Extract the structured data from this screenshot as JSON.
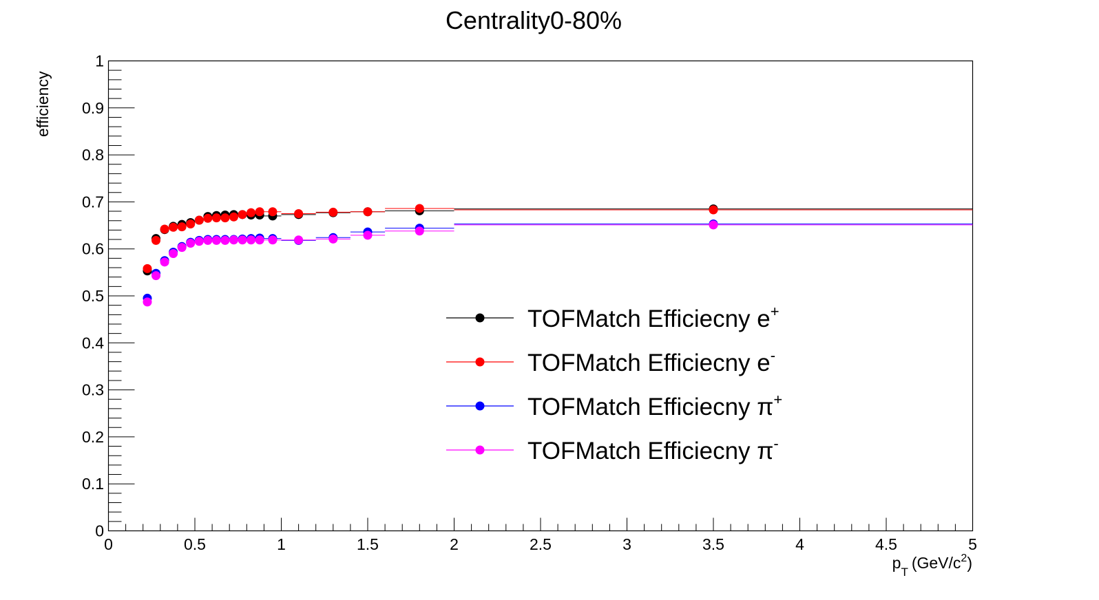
{
  "chart_data": {
    "type": "scatter",
    "title": "Centrality0-80%",
    "ylabel": "efficiency",
    "xlabel_parts": {
      "p": "p",
      "T": "T",
      "units": "(GeV/c",
      "sup": "2",
      "close": ")"
    },
    "xlim": [
      0,
      5
    ],
    "ylim": [
      0,
      1
    ],
    "x_ticks": [
      "0",
      "0.5",
      "1",
      "1.5",
      "2",
      "2.5",
      "3",
      "3.5",
      "4",
      "4.5",
      "5"
    ],
    "y_ticks": [
      "0",
      "0.1",
      "0.2",
      "0.3",
      "0.4",
      "0.5",
      "0.6",
      "0.7",
      "0.8",
      "0.9",
      "1"
    ],
    "grid": false,
    "legend_position": "center-right",
    "series": [
      {
        "name": "TOFMatch Efficiecny e+",
        "label_base": "TOFMatch Efficiecny e",
        "label_sup": "+",
        "color": "#000000",
        "points": [
          {
            "x": 0.225,
            "xerr": 0.025,
            "y": 0.553
          },
          {
            "x": 0.275,
            "xerr": 0.025,
            "y": 0.622
          },
          {
            "x": 0.325,
            "xerr": 0.025,
            "y": 0.641
          },
          {
            "x": 0.375,
            "xerr": 0.025,
            "y": 0.648
          },
          {
            "x": 0.425,
            "xerr": 0.025,
            "y": 0.652
          },
          {
            "x": 0.475,
            "xerr": 0.025,
            "y": 0.656
          },
          {
            "x": 0.525,
            "xerr": 0.025,
            "y": 0.661
          },
          {
            "x": 0.575,
            "xerr": 0.025,
            "y": 0.669
          },
          {
            "x": 0.625,
            "xerr": 0.025,
            "y": 0.671
          },
          {
            "x": 0.675,
            "xerr": 0.025,
            "y": 0.672
          },
          {
            "x": 0.725,
            "xerr": 0.025,
            "y": 0.673
          },
          {
            "x": 0.775,
            "xerr": 0.025,
            "y": 0.673
          },
          {
            "x": 0.825,
            "xerr": 0.025,
            "y": 0.672
          },
          {
            "x": 0.875,
            "xerr": 0.025,
            "y": 0.672
          },
          {
            "x": 0.95,
            "xerr": 0.05,
            "y": 0.67
          },
          {
            "x": 1.1,
            "xerr": 0.1,
            "y": 0.673
          },
          {
            "x": 1.3,
            "xerr": 0.1,
            "y": 0.677
          },
          {
            "x": 1.5,
            "xerr": 0.1,
            "y": 0.679
          },
          {
            "x": 1.8,
            "xerr": 0.2,
            "y": 0.681
          },
          {
            "x": 3.5,
            "xerr": 1.5,
            "y": 0.685
          }
        ]
      },
      {
        "name": "TOFMatch Efficiecny e-",
        "label_base": "TOFMatch Efficiecny e",
        "label_sup": "-",
        "color": "#ff0000",
        "points": [
          {
            "x": 0.225,
            "xerr": 0.025,
            "y": 0.558
          },
          {
            "x": 0.275,
            "xerr": 0.025,
            "y": 0.618
          },
          {
            "x": 0.325,
            "xerr": 0.025,
            "y": 0.642
          },
          {
            "x": 0.375,
            "xerr": 0.025,
            "y": 0.646
          },
          {
            "x": 0.425,
            "xerr": 0.025,
            "y": 0.647
          },
          {
            "x": 0.475,
            "xerr": 0.025,
            "y": 0.653
          },
          {
            "x": 0.525,
            "xerr": 0.025,
            "y": 0.661
          },
          {
            "x": 0.575,
            "xerr": 0.025,
            "y": 0.665
          },
          {
            "x": 0.625,
            "xerr": 0.025,
            "y": 0.666
          },
          {
            "x": 0.675,
            "xerr": 0.025,
            "y": 0.666
          },
          {
            "x": 0.725,
            "xerr": 0.025,
            "y": 0.668
          },
          {
            "x": 0.775,
            "xerr": 0.025,
            "y": 0.673
          },
          {
            "x": 0.825,
            "xerr": 0.025,
            "y": 0.677
          },
          {
            "x": 0.875,
            "xerr": 0.025,
            "y": 0.679
          },
          {
            "x": 0.95,
            "xerr": 0.05,
            "y": 0.679
          },
          {
            "x": 1.1,
            "xerr": 0.1,
            "y": 0.675
          },
          {
            "x": 1.3,
            "xerr": 0.1,
            "y": 0.678
          },
          {
            "x": 1.5,
            "xerr": 0.1,
            "y": 0.679
          },
          {
            "x": 1.8,
            "xerr": 0.2,
            "y": 0.686
          },
          {
            "x": 3.5,
            "xerr": 1.5,
            "y": 0.683
          }
        ]
      },
      {
        "name": "TOFMatch Efficiecny π+",
        "label_base": "TOFMatch Efficiecny π",
        "label_sup": "+",
        "color": "#0000ff",
        "points": [
          {
            "x": 0.225,
            "xerr": 0.025,
            "y": 0.495
          },
          {
            "x": 0.275,
            "xerr": 0.025,
            "y": 0.548
          },
          {
            "x": 0.325,
            "xerr": 0.025,
            "y": 0.575
          },
          {
            "x": 0.375,
            "xerr": 0.025,
            "y": 0.593
          },
          {
            "x": 0.425,
            "xerr": 0.025,
            "y": 0.605
          },
          {
            "x": 0.475,
            "xerr": 0.025,
            "y": 0.614
          },
          {
            "x": 0.525,
            "xerr": 0.025,
            "y": 0.618
          },
          {
            "x": 0.575,
            "xerr": 0.025,
            "y": 0.62
          },
          {
            "x": 0.625,
            "xerr": 0.025,
            "y": 0.62
          },
          {
            "x": 0.675,
            "xerr": 0.025,
            "y": 0.62
          },
          {
            "x": 0.725,
            "xerr": 0.025,
            "y": 0.62
          },
          {
            "x": 0.775,
            "xerr": 0.025,
            "y": 0.621
          },
          {
            "x": 0.825,
            "xerr": 0.025,
            "y": 0.622
          },
          {
            "x": 0.875,
            "xerr": 0.025,
            "y": 0.623
          },
          {
            "x": 0.95,
            "xerr": 0.05,
            "y": 0.622
          },
          {
            "x": 1.1,
            "xerr": 0.1,
            "y": 0.618
          },
          {
            "x": 1.3,
            "xerr": 0.1,
            "y": 0.624
          },
          {
            "x": 1.5,
            "xerr": 0.1,
            "y": 0.636
          },
          {
            "x": 1.8,
            "xerr": 0.2,
            "y": 0.644
          },
          {
            "x": 3.5,
            "xerr": 1.5,
            "y": 0.653
          }
        ]
      },
      {
        "name": "TOFMatch Efficiecny π-",
        "label_base": "TOFMatch Efficiecny π",
        "label_sup": "-",
        "color": "#ff00ff",
        "points": [
          {
            "x": 0.225,
            "xerr": 0.025,
            "y": 0.487
          },
          {
            "x": 0.275,
            "xerr": 0.025,
            "y": 0.543
          },
          {
            "x": 0.325,
            "xerr": 0.025,
            "y": 0.572
          },
          {
            "x": 0.375,
            "xerr": 0.025,
            "y": 0.59
          },
          {
            "x": 0.425,
            "xerr": 0.025,
            "y": 0.603
          },
          {
            "x": 0.475,
            "xerr": 0.025,
            "y": 0.612
          },
          {
            "x": 0.525,
            "xerr": 0.025,
            "y": 0.616
          },
          {
            "x": 0.575,
            "xerr": 0.025,
            "y": 0.618
          },
          {
            "x": 0.625,
            "xerr": 0.025,
            "y": 0.618
          },
          {
            "x": 0.675,
            "xerr": 0.025,
            "y": 0.618
          },
          {
            "x": 0.725,
            "xerr": 0.025,
            "y": 0.619
          },
          {
            "x": 0.775,
            "xerr": 0.025,
            "y": 0.619
          },
          {
            "x": 0.825,
            "xerr": 0.025,
            "y": 0.619
          },
          {
            "x": 0.875,
            "xerr": 0.025,
            "y": 0.619
          },
          {
            "x": 0.95,
            "xerr": 0.05,
            "y": 0.619
          },
          {
            "x": 1.1,
            "xerr": 0.1,
            "y": 0.619
          },
          {
            "x": 1.3,
            "xerr": 0.1,
            "y": 0.621
          },
          {
            "x": 1.5,
            "xerr": 0.1,
            "y": 0.629
          },
          {
            "x": 1.8,
            "xerr": 0.2,
            "y": 0.638
          },
          {
            "x": 3.5,
            "xerr": 1.5,
            "y": 0.651
          }
        ]
      }
    ]
  }
}
